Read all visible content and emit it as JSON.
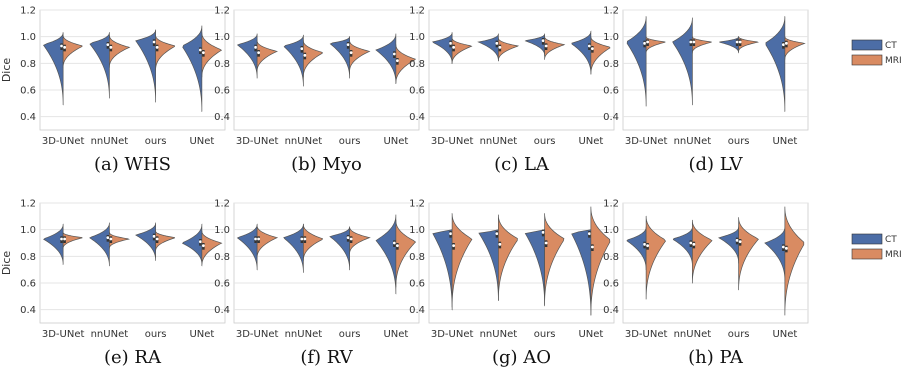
{
  "colors": {
    "ct": "#4c6da6",
    "mri": "#d98b62",
    "grid": "#e4e4e4",
    "frame": "#cccccc"
  },
  "legend": {
    "ct_label": "CT",
    "mri_label": "MRI"
  },
  "y_axis_label": "Dice",
  "chart_data": [
    {
      "type": "violin",
      "caption": "(a) WHS",
      "ylabel": "Dice",
      "ylim": [
        0.3,
        1.2
      ],
      "yticks": [
        0.4,
        0.6,
        0.8,
        1.0,
        1.2
      ],
      "grid": true,
      "categories": [
        "3D-UNet",
        "nnUNet",
        "ours",
        "UNet"
      ],
      "series": [
        {
          "name": "CT",
          "median": [
            0.93,
            0.94,
            0.96,
            0.9
          ],
          "min": [
            0.49,
            0.54,
            0.51,
            0.44
          ],
          "max": [
            1.03,
            1.03,
            1.05,
            1.08
          ],
          "mode": [
            0.94,
            0.95,
            0.97,
            0.93
          ]
        },
        {
          "name": "MRI",
          "median": [
            0.92,
            0.92,
            0.92,
            0.88
          ],
          "min": [
            0.77,
            0.77,
            0.75,
            0.7
          ],
          "max": [
            1.01,
            1.01,
            1.01,
            1.03
          ],
          "mode": [
            0.93,
            0.92,
            0.93,
            0.9
          ]
        }
      ]
    },
    {
      "type": "violin",
      "caption": "(b) Myo",
      "ylabel": "",
      "ylim": [
        0.3,
        1.2
      ],
      "yticks": [
        0.4,
        0.6,
        0.8,
        1.0,
        1.2
      ],
      "grid": true,
      "categories": [
        "3D-UNet",
        "nnUNet",
        "ours",
        "UNet"
      ],
      "series": [
        {
          "name": "CT",
          "median": [
            0.92,
            0.91,
            0.94,
            0.87
          ],
          "min": [
            0.69,
            0.63,
            0.69,
            0.65
          ],
          "max": [
            1.02,
            1.01,
            1.0,
            1.02
          ],
          "mode": [
            0.94,
            0.93,
            0.95,
            0.9
          ]
        },
        {
          "name": "MRI",
          "median": [
            0.88,
            0.86,
            0.88,
            0.82
          ],
          "min": [
            0.74,
            0.7,
            0.74,
            0.65
          ],
          "max": [
            0.97,
            0.97,
            0.97,
            0.94
          ],
          "mode": [
            0.89,
            0.88,
            0.89,
            0.83
          ]
        }
      ]
    },
    {
      "type": "violin",
      "caption": "(c) LA",
      "ylabel": "",
      "ylim": [
        0.3,
        1.2
      ],
      "yticks": [
        0.4,
        0.6,
        0.8,
        1.0,
        1.2
      ],
      "grid": true,
      "categories": [
        "3D-UNet",
        "nnUNet",
        "ours",
        "UNet"
      ],
      "series": [
        {
          "name": "CT",
          "median": [
            0.95,
            0.95,
            0.97,
            0.93
          ],
          "min": [
            0.8,
            0.82,
            0.86,
            0.72
          ],
          "max": [
            1.03,
            1.02,
            1.02,
            1.04
          ],
          "mode": [
            0.96,
            0.96,
            0.97,
            0.95
          ]
        },
        {
          "name": "MRI",
          "median": [
            0.92,
            0.92,
            0.93,
            0.91
          ],
          "min": [
            0.8,
            0.82,
            0.83,
            0.72
          ],
          "max": [
            0.99,
            0.99,
            1.0,
            1.0
          ],
          "mode": [
            0.93,
            0.93,
            0.94,
            0.92
          ]
        }
      ]
    },
    {
      "type": "violin",
      "caption": "(d) LV",
      "ylabel": "",
      "ylim": [
        0.3,
        1.2
      ],
      "yticks": [
        0.4,
        0.6,
        0.8,
        1.0,
        1.2
      ],
      "grid": true,
      "categories": [
        "3D-UNet",
        "nnUNet",
        "ours",
        "UNet"
      ],
      "series": [
        {
          "name": "CT",
          "median": [
            0.95,
            0.96,
            0.96,
            0.94
          ],
          "min": [
            0.48,
            0.49,
            0.88,
            0.44
          ],
          "max": [
            1.15,
            1.14,
            1.0,
            1.15
          ],
          "mode": [
            0.96,
            0.96,
            0.96,
            0.95
          ]
        },
        {
          "name": "MRI",
          "median": [
            0.96,
            0.96,
            0.96,
            0.95
          ],
          "min": [
            0.88,
            0.88,
            0.89,
            0.83
          ],
          "max": [
            1.0,
            1.0,
            1.0,
            1.0
          ],
          "mode": [
            0.96,
            0.96,
            0.96,
            0.95
          ]
        }
      ]
    },
    {
      "type": "violin",
      "caption": "(e) RA",
      "ylabel": "Dice",
      "ylim": [
        0.3,
        1.2
      ],
      "yticks": [
        0.4,
        0.6,
        0.8,
        1.0,
        1.2
      ],
      "grid": true,
      "categories": [
        "3D-UNet",
        "nnUNet",
        "ours",
        "UNet"
      ],
      "series": [
        {
          "name": "CT",
          "median": [
            0.93,
            0.94,
            0.95,
            0.91
          ],
          "min": [
            0.74,
            0.73,
            0.77,
            0.74
          ],
          "max": [
            1.04,
            1.05,
            1.05,
            1.04
          ],
          "mode": [
            0.93,
            0.94,
            0.96,
            0.9
          ]
        },
        {
          "name": "MRI",
          "median": [
            0.93,
            0.93,
            0.93,
            0.88
          ],
          "min": [
            0.86,
            0.86,
            0.84,
            0.73
          ],
          "max": [
            0.98,
            0.98,
            0.99,
            0.99
          ],
          "mode": [
            0.94,
            0.93,
            0.94,
            0.9
          ]
        }
      ]
    },
    {
      "type": "violin",
      "caption": "(f) RV",
      "ylabel": "",
      "ylim": [
        0.3,
        1.2
      ],
      "yticks": [
        0.4,
        0.6,
        0.8,
        1.0,
        1.2
      ],
      "grid": true,
      "categories": [
        "3D-UNet",
        "nnUNet",
        "ours",
        "UNet"
      ],
      "series": [
        {
          "name": "CT",
          "median": [
            0.93,
            0.93,
            0.94,
            0.9
          ],
          "min": [
            0.7,
            0.68,
            0.7,
            0.52
          ],
          "max": [
            1.04,
            1.04,
            1.02,
            1.11
          ],
          "mode": [
            0.94,
            0.94,
            0.95,
            0.92
          ]
        },
        {
          "name": "MRI",
          "median": [
            0.93,
            0.93,
            0.93,
            0.88
          ],
          "min": [
            0.79,
            0.77,
            0.82,
            0.57
          ],
          "max": [
            1.03,
            1.04,
            1.02,
            1.07
          ],
          "mode": [
            0.94,
            0.93,
            0.94,
            0.91
          ]
        }
      ]
    },
    {
      "type": "violin",
      "caption": "(g) AO",
      "ylabel": "",
      "ylim": [
        0.3,
        1.2
      ],
      "yticks": [
        0.4,
        0.6,
        0.8,
        1.0,
        1.2
      ],
      "grid": true,
      "categories": [
        "3D-UNet",
        "nnUNet",
        "ours",
        "UNet"
      ],
      "series": [
        {
          "name": "CT",
          "median": [
            0.97,
            0.97,
            0.98,
            0.97
          ],
          "min": [
            0.4,
            0.47,
            0.43,
            0.36
          ],
          "max": [
            1.0,
            1.0,
            1.0,
            1.0
          ],
          "mode": [
            0.98,
            0.98,
            0.98,
            0.98
          ]
        },
        {
          "name": "MRI",
          "median": [
            0.88,
            0.89,
            0.9,
            0.87
          ],
          "min": [
            0.42,
            0.47,
            0.44,
            0.36
          ],
          "max": [
            1.12,
            1.11,
            1.12,
            1.17
          ],
          "mode": [
            0.93,
            0.93,
            0.93,
            0.92
          ]
        }
      ]
    },
    {
      "type": "violin",
      "caption": "(h) PA",
      "ylabel": "",
      "ylim": [
        0.3,
        1.2
      ],
      "yticks": [
        0.4,
        0.6,
        0.8,
        1.0,
        1.2
      ],
      "grid": true,
      "categories": [
        "3D-UNet",
        "nnUNet",
        "ours",
        "UNet"
      ],
      "series": [
        {
          "name": "CT",
          "median": [
            0.89,
            0.9,
            0.92,
            0.87
          ],
          "min": [
            0.7,
            0.73,
            0.75,
            0.62
          ],
          "max": [
            1.02,
            1.02,
            1.02,
            1.02
          ],
          "mode": [
            0.92,
            0.93,
            0.94,
            0.9
          ]
        },
        {
          "name": "MRI",
          "median": [
            0.88,
            0.89,
            0.91,
            0.86
          ],
          "min": [
            0.48,
            0.6,
            0.55,
            0.36
          ],
          "max": [
            1.1,
            1.07,
            1.09,
            1.17
          ],
          "mode": [
            0.92,
            0.92,
            0.93,
            0.9
          ]
        }
      ]
    }
  ]
}
